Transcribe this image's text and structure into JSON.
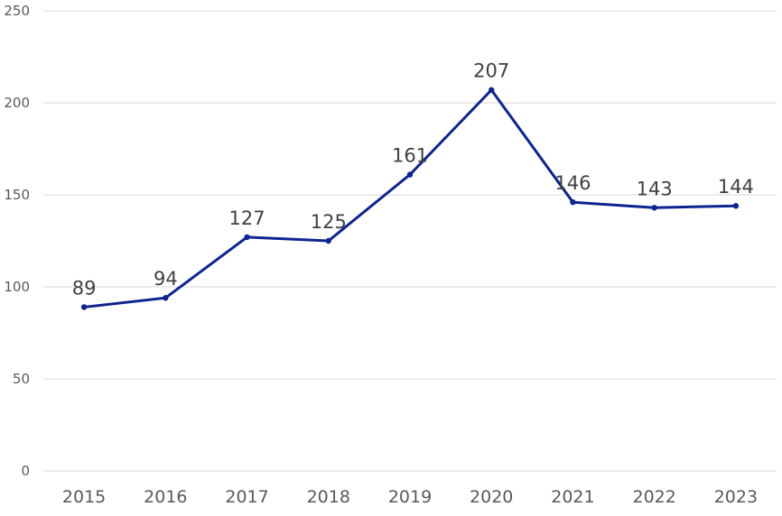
{
  "chart_data": {
    "type": "line",
    "title": "",
    "xlabel": "",
    "ylabel": "",
    "categories": [
      "2015",
      "2016",
      "2017",
      "2018",
      "2019",
      "2020",
      "2021",
      "2022",
      "2023"
    ],
    "series": [
      {
        "values": [
          89,
          94,
          127,
          125,
          161,
          207,
          146,
          143,
          144
        ],
        "color": "#0d2490"
      }
    ],
    "ylim": [
      0,
      250
    ],
    "yticks": [
      0,
      50,
      100,
      150,
      200,
      250
    ],
    "grid": true,
    "legend": "none",
    "data_labels": true
  }
}
